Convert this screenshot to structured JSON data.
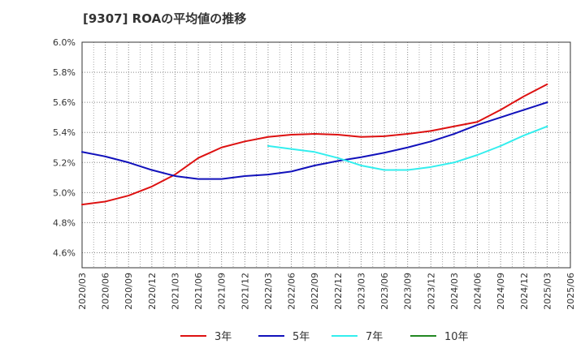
{
  "chart_data": {
    "type": "line",
    "title": "[9307]  ROAの平均値の推移",
    "xlabel": "",
    "ylabel": "",
    "ylim": [
      4.5,
      6.0
    ],
    "y_ticks": [
      "4.6%",
      "4.8%",
      "5.0%",
      "5.2%",
      "5.4%",
      "5.6%",
      "5.8%",
      "6.0%"
    ],
    "x": [
      "2020/03",
      "2020/06",
      "2020/09",
      "2020/12",
      "2021/03",
      "2021/06",
      "2021/09",
      "2021/12",
      "2022/03",
      "2022/06",
      "2022/09",
      "2022/12",
      "2023/03",
      "2023/06",
      "2023/09",
      "2023/12",
      "2024/03",
      "2024/06",
      "2024/09",
      "2024/12",
      "2025/03",
      "2025/06"
    ],
    "grid": true,
    "legend_position": "bottom",
    "series": [
      {
        "name": "3年",
        "color": "#dd1111",
        "values": [
          4.92,
          4.94,
          4.98,
          5.04,
          5.12,
          5.23,
          5.3,
          5.34,
          5.37,
          5.385,
          5.39,
          5.385,
          5.37,
          5.375,
          5.39,
          5.41,
          5.44,
          5.47,
          5.55,
          5.64,
          5.72,
          null
        ]
      },
      {
        "name": "5年",
        "color": "#1111bb",
        "values": [
          5.27,
          5.24,
          5.2,
          5.15,
          5.11,
          5.09,
          5.09,
          5.11,
          5.12,
          5.14,
          5.18,
          5.21,
          5.235,
          5.265,
          5.3,
          5.34,
          5.39,
          5.45,
          5.5,
          5.55,
          5.6,
          null
        ]
      },
      {
        "name": "7年",
        "color": "#33eeee",
        "values": [
          null,
          null,
          null,
          null,
          null,
          null,
          null,
          null,
          5.31,
          5.29,
          5.27,
          5.23,
          5.18,
          5.15,
          5.15,
          5.17,
          5.2,
          5.25,
          5.31,
          5.38,
          5.44,
          null
        ]
      },
      {
        "name": "10年",
        "color": "#228822",
        "values": [
          null,
          null,
          null,
          null,
          null,
          null,
          null,
          null,
          null,
          null,
          null,
          null,
          null,
          null,
          null,
          null,
          null,
          null,
          null,
          null,
          null,
          null
        ]
      }
    ]
  }
}
